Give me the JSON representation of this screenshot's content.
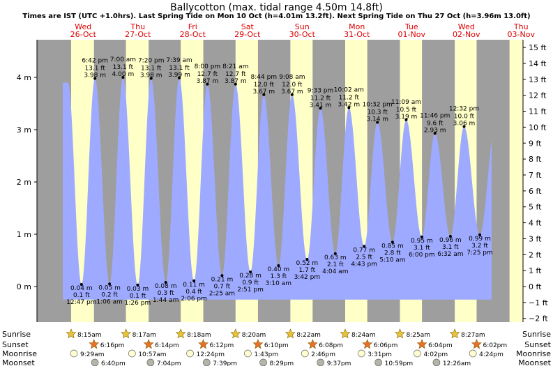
{
  "title": "Ballycotton (max. tidal range 4.50m 14.8ft)",
  "subtitle": "Times are IST (UTC +1.0hrs). Last Spring Tide on Mon 10 Oct (h=4.01m 13.2ft). Next Spring Tide on Thu 27 Oct (h=3.96m 13.0ft)",
  "colors": {
    "night": "#9e9e9e",
    "day": "#ffffc8",
    "water": "#9eaaff",
    "day_label": "#dd0000",
    "sun": "#e8c43a",
    "sunset": "#e8702a",
    "moonrise": "#ffffd0",
    "moonset": "#b4b4a8"
  },
  "chart_data": {
    "type": "area",
    "title": "Ballycotton (max. tidal range 4.50m 14.8ft)",
    "days": [
      {
        "dow": "Wed",
        "date": "26-Oct"
      },
      {
        "dow": "Thu",
        "date": "27-Oct"
      },
      {
        "dow": "Fri",
        "date": "28-Oct"
      },
      {
        "dow": "Sat",
        "date": "29-Oct"
      },
      {
        "dow": "Sun",
        "date": "30-Oct"
      },
      {
        "dow": "Mon",
        "date": "31-Oct"
      },
      {
        "dow": "Tue",
        "date": "01-Nov"
      },
      {
        "dow": "Wed",
        "date": "02-Nov"
      },
      {
        "dow": "Thu",
        "date": "03-Nov"
      }
    ],
    "y_left": {
      "unit": "m",
      "ylim": [
        -0.6,
        4.7
      ],
      "ticks": [
        0,
        1,
        2,
        3,
        4
      ],
      "tick_labels": [
        "0 m",
        "1 m",
        "2 m",
        "3 m",
        "4 m"
      ]
    },
    "y_right": {
      "unit": "ft",
      "ticks": [
        -2,
        -1,
        0,
        1,
        2,
        3,
        4,
        5,
        6,
        7,
        8,
        9,
        10,
        11,
        12,
        13,
        14,
        15
      ],
      "tick_labels": [
        "−2 ft",
        "−1 ft",
        "0 ft",
        "1 ft",
        "2 ft",
        "3 ft",
        "4 ft",
        "5 ft",
        "6 ft",
        "7 ft",
        "8 ft",
        "9 ft",
        "10 ft",
        "11 ft",
        "12 ft",
        "13 ft",
        "14 ft",
        "15 ft"
      ]
    },
    "tides": [
      {
        "kind": "low",
        "day": 0,
        "time": "12:47 pm",
        "m": 0.04,
        "m_label": "0.04 m",
        "ft": "0.1 ft"
      },
      {
        "kind": "high",
        "day": 0,
        "time": "6:42 pm",
        "m": 3.98,
        "m_label": "3.98 m",
        "ft": "13.1 ft"
      },
      {
        "kind": "low",
        "day": 1,
        "time": "1:06 am",
        "m": 0.05,
        "m_label": "0.05 m",
        "ft": "0.2 ft"
      },
      {
        "kind": "high",
        "day": 1,
        "time": "7:00 am",
        "m": 4.0,
        "m_label": "4.00 m",
        "ft": "13.1 ft"
      },
      {
        "kind": "low",
        "day": 1,
        "time": "1:26 pm",
        "m": 0.03,
        "m_label": "0.03 m",
        "ft": "0.1 ft"
      },
      {
        "kind": "high",
        "day": 1,
        "time": "7:20 pm",
        "m": 3.98,
        "m_label": "3.98 m",
        "ft": "13.1 ft"
      },
      {
        "kind": "low",
        "day": 2,
        "time": "1:44 am",
        "m": 0.08,
        "m_label": "0.08 m",
        "ft": "0.3 ft"
      },
      {
        "kind": "high",
        "day": 2,
        "time": "7:39 am",
        "m": 3.99,
        "m_label": "3.99 m",
        "ft": "13.1 ft"
      },
      {
        "kind": "low",
        "day": 2,
        "time": "2:06 pm",
        "m": 0.11,
        "m_label": "0.11 m",
        "ft": "0.4 ft"
      },
      {
        "kind": "high",
        "day": 2,
        "time": "8:00 pm",
        "m": 3.87,
        "m_label": "3.87 m",
        "ft": "12.7 ft"
      },
      {
        "kind": "low",
        "day": 3,
        "time": "2:25 am",
        "m": 0.21,
        "m_label": "0.21 m",
        "ft": "0.7 ft"
      },
      {
        "kind": "high",
        "day": 3,
        "time": "8:21 am",
        "m": 3.87,
        "m_label": "3.87 m",
        "ft": "12.7 ft"
      },
      {
        "kind": "low",
        "day": 3,
        "time": "2:51 pm",
        "m": 0.28,
        "m_label": "0.28 m",
        "ft": "0.9 ft"
      },
      {
        "kind": "high",
        "day": 3,
        "time": "8:44 pm",
        "m": 3.67,
        "m_label": "3.67 m",
        "ft": "12.0 ft"
      },
      {
        "kind": "low",
        "day": 4,
        "time": "3:10 am",
        "m": 0.4,
        "m_label": "0.40 m",
        "ft": "1.3 ft"
      },
      {
        "kind": "high",
        "day": 4,
        "time": "9:08 am",
        "m": 3.67,
        "m_label": "3.67 m",
        "ft": "12.0 ft"
      },
      {
        "kind": "low",
        "day": 4,
        "time": "3:42 pm",
        "m": 0.52,
        "m_label": "0.52 m",
        "ft": "1.7 ft"
      },
      {
        "kind": "high",
        "day": 4,
        "time": "9:33 pm",
        "m": 3.41,
        "m_label": "3.41 m",
        "ft": "11.2 ft"
      },
      {
        "kind": "low",
        "day": 5,
        "time": "4:04 am",
        "m": 0.63,
        "m_label": "0.63 m",
        "ft": "2.1 ft"
      },
      {
        "kind": "high",
        "day": 5,
        "time": "10:02 am",
        "m": 3.42,
        "m_label": "3.42 m",
        "ft": "11.2 ft"
      },
      {
        "kind": "low",
        "day": 5,
        "time": "4:43 pm",
        "m": 0.77,
        "m_label": "0.77 m",
        "ft": "2.5 ft"
      },
      {
        "kind": "high",
        "day": 5,
        "time": "10:32 pm",
        "m": 3.14,
        "m_label": "3.14 m",
        "ft": "10.3 ft"
      },
      {
        "kind": "low",
        "day": 6,
        "time": "5:10 am",
        "m": 0.85,
        "m_label": "0.85 m",
        "ft": "2.8 ft"
      },
      {
        "kind": "high",
        "day": 6,
        "time": "11:09 am",
        "m": 3.19,
        "m_label": "3.19 m",
        "ft": "10.5 ft"
      },
      {
        "kind": "low",
        "day": 6,
        "time": "6:00 pm",
        "m": 0.95,
        "m_label": "0.95 m",
        "ft": "3.1 ft"
      },
      {
        "kind": "high",
        "day": 6,
        "time": "11:46 pm",
        "m": 2.93,
        "m_label": "2.93 m",
        "ft": "9.6 ft"
      },
      {
        "kind": "low",
        "day": 7,
        "time": "6:32 am",
        "m": 0.96,
        "m_label": "0.96 m",
        "ft": "3.1 ft"
      },
      {
        "kind": "high",
        "day": 7,
        "time": "12:32 pm",
        "m": 3.06,
        "m_label": "3.06 m",
        "ft": "10.0 ft"
      },
      {
        "kind": "low",
        "day": 7,
        "time": "7:25 pm",
        "m": 0.99,
        "m_label": "0.99 m",
        "ft": "3.2 ft"
      }
    ],
    "rows": [
      {
        "label": "Sunrise",
        "kind": "sunrise",
        "entries": [
          {
            "day": 0,
            "time": "8:15am"
          },
          {
            "day": 1,
            "time": "8:17am"
          },
          {
            "day": 2,
            "time": "8:18am"
          },
          {
            "day": 3,
            "time": "8:20am"
          },
          {
            "day": 4,
            "time": "8:22am"
          },
          {
            "day": 5,
            "time": "8:24am"
          },
          {
            "day": 6,
            "time": "8:25am"
          },
          {
            "day": 7,
            "time": "8:27am"
          }
        ]
      },
      {
        "label": "Sunset",
        "kind": "sunset",
        "entries": [
          {
            "day": 0,
            "time": "6:16pm"
          },
          {
            "day": 1,
            "time": "6:14pm"
          },
          {
            "day": 2,
            "time": "6:12pm"
          },
          {
            "day": 3,
            "time": "6:10pm"
          },
          {
            "day": 4,
            "time": "6:08pm"
          },
          {
            "day": 5,
            "time": "6:06pm"
          },
          {
            "day": 6,
            "time": "6:04pm"
          },
          {
            "day": 7,
            "time": "6:02pm"
          }
        ]
      },
      {
        "label": "Moonrise",
        "kind": "moonrise",
        "entries": [
          {
            "day": 0,
            "time": "9:29am"
          },
          {
            "day": 1,
            "time": "10:57am"
          },
          {
            "day": 2,
            "time": "12:24pm"
          },
          {
            "day": 3,
            "time": "1:43pm"
          },
          {
            "day": 4,
            "time": "2:46pm"
          },
          {
            "day": 5,
            "time": "3:31pm"
          },
          {
            "day": 6,
            "time": "4:02pm"
          },
          {
            "day": 7,
            "time": "4:24pm"
          }
        ]
      },
      {
        "label": "Moonset",
        "kind": "moonset",
        "entries": [
          {
            "day": 0,
            "time": "6:40pm"
          },
          {
            "day": 1,
            "time": "7:04pm"
          },
          {
            "day": 2,
            "time": "7:39pm"
          },
          {
            "day": 3,
            "time": "8:29pm"
          },
          {
            "day": 4,
            "time": "9:37pm"
          },
          {
            "day": 5,
            "time": "10:59pm"
          },
          {
            "day": 6,
            "time": "12:26am"
          }
        ]
      }
    ]
  }
}
